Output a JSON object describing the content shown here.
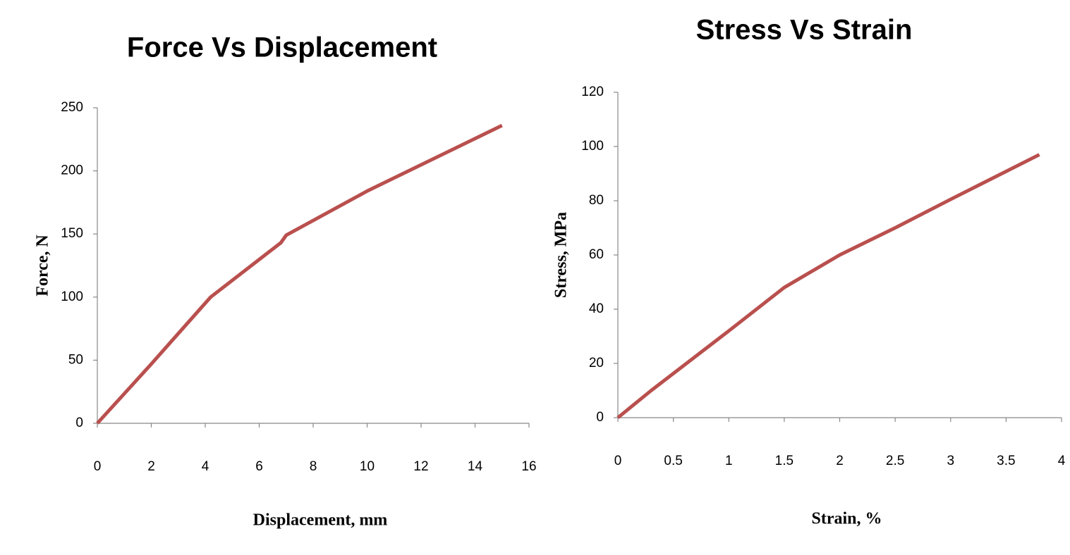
{
  "chart_data": [
    {
      "type": "line",
      "title": "Force Vs Displacement",
      "x_label": "Displacement, mm",
      "y_label": "Force, N",
      "series": [
        {
          "name": "Force",
          "color": "#b9504e",
          "x": [
            0,
            2,
            4.2,
            6.8,
            7,
            10,
            15
          ],
          "values": [
            0,
            47,
            100,
            143,
            149,
            184,
            236
          ]
        }
      ],
      "xlim": [
        0,
        16
      ],
      "xticks": [
        0,
        2,
        4,
        6,
        8,
        10,
        12,
        14,
        16
      ],
      "ylim": [
        0,
        250
      ],
      "yticks": [
        0,
        50,
        100,
        150,
        200,
        250
      ],
      "grid": false
    },
    {
      "type": "line",
      "title": "Stress Vs Strain",
      "x_label": "Strain, %",
      "y_label": "Stress, MPa",
      "series": [
        {
          "name": "Stress",
          "color": "#b9504e",
          "x": [
            0,
            0.3,
            1,
            1.5,
            2,
            2.5,
            3,
            3.8
          ],
          "values": [
            0,
            10,
            32,
            48,
            60,
            70,
            80.5,
            97
          ]
        }
      ],
      "xlim": [
        0,
        4
      ],
      "xticks": [
        0,
        0.5,
        1,
        1.5,
        2,
        2.5,
        3,
        3.5,
        4
      ],
      "ylim": [
        0,
        120
      ],
      "yticks": [
        0,
        20,
        40,
        60,
        80,
        100,
        120
      ],
      "grid": false
    }
  ]
}
